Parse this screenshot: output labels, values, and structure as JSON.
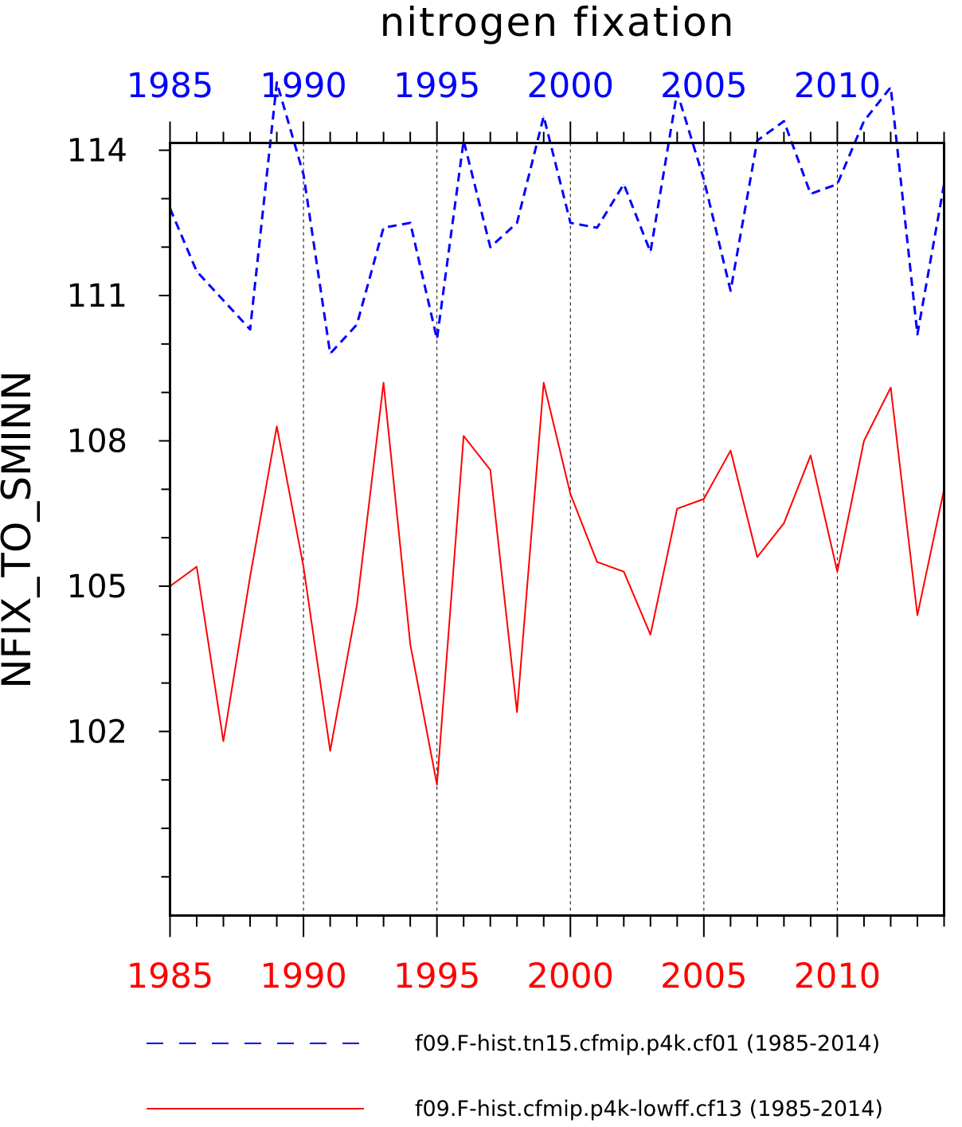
{
  "chart_data": {
    "type": "line",
    "title": "nitrogen fixation",
    "ylabel": "NFIX_TO_SMINN",
    "xlabel": "",
    "xlim": [
      1985,
      2014
    ],
    "ylim": [
      98.2,
      114.15
    ],
    "yticks": [
      102,
      105,
      108,
      111,
      114
    ],
    "xticks": [
      1985,
      1990,
      1995,
      2000,
      2005,
      2010
    ],
    "x": [
      1985,
      1986,
      1987,
      1988,
      1989,
      1990,
      1991,
      1992,
      1993,
      1994,
      1995,
      1996,
      1997,
      1998,
      1999,
      2000,
      2001,
      2002,
      2003,
      2004,
      2005,
      2006,
      2007,
      2008,
      2009,
      2010,
      2011,
      2012,
      2013,
      2014
    ],
    "series": [
      {
        "name": "f09.F-hist.tn15.cfmip.p4k.cf01 (1985-2014)",
        "color": "#0000ff",
        "style": "dashed",
        "axis": "top",
        "values": [
          112.8,
          111.5,
          110.9,
          110.3,
          115.4,
          113.5,
          109.8,
          110.4,
          112.4,
          112.5,
          110.1,
          114.2,
          112.0,
          112.5,
          114.7,
          112.5,
          112.4,
          113.3,
          111.9,
          115.2,
          113.4,
          111.1,
          114.2,
          114.6,
          113.1,
          113.3,
          114.6,
          115.3,
          110.2,
          113.3
        ]
      },
      {
        "name": "f09.F-hist.cfmip.p4k-lowff.cf13 (1985-2014)",
        "color": "#ff0000",
        "style": "solid",
        "axis": "bottom",
        "values": [
          105.0,
          105.4,
          101.8,
          105.2,
          108.3,
          105.4,
          101.6,
          104.6,
          109.2,
          103.8,
          100.9,
          108.1,
          107.4,
          102.4,
          109.2,
          106.9,
          105.5,
          105.3,
          104.0,
          106.6,
          106.8,
          107.8,
          105.6,
          106.3,
          107.7,
          105.3,
          108.0,
          109.1,
          104.4,
          107.0
        ]
      }
    ],
    "grid": "vertical dashed at major x ticks",
    "legend": "bottom"
  }
}
